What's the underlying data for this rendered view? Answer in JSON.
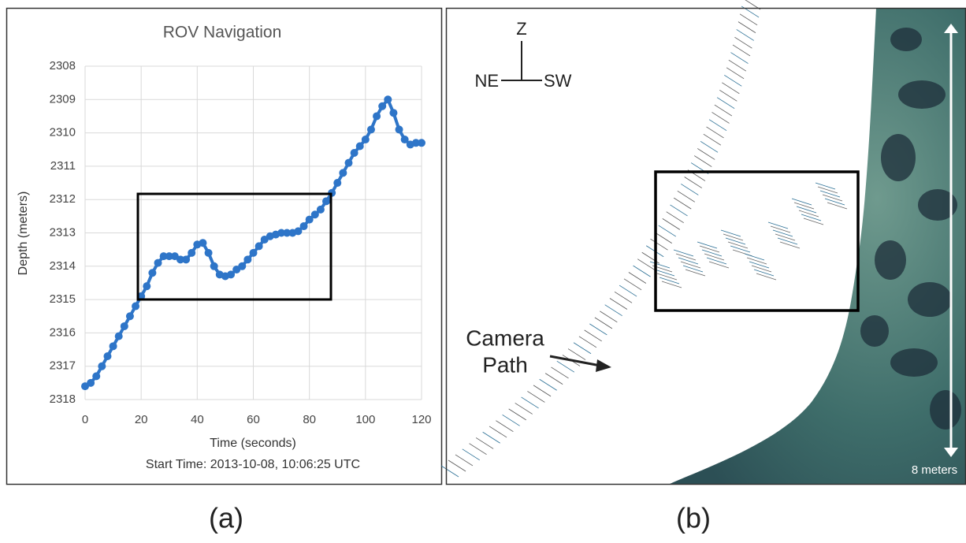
{
  "chart_data": {
    "type": "line",
    "title": "ROV Navigation",
    "x_label": "Time (seconds)",
    "y_label": "Depth (meters)",
    "note": "Start Time: 2013-10-08, 10:06:25 UTC",
    "x": [
      0,
      2,
      4,
      6,
      8,
      10,
      12,
      14,
      16,
      18,
      20,
      22,
      24,
      26,
      28,
      30,
      32,
      34,
      36,
      38,
      40,
      42,
      44,
      46,
      48,
      50,
      52,
      54,
      56,
      58,
      60,
      62,
      64,
      66,
      68,
      70,
      72,
      74,
      76,
      78,
      80,
      82,
      84,
      86,
      88,
      90,
      92,
      94,
      96,
      98,
      100,
      102,
      104,
      106,
      108,
      110,
      112,
      114,
      116,
      118,
      120
    ],
    "values": [
      2317.6,
      2317.5,
      2317.3,
      2317.0,
      2316.7,
      2316.4,
      2316.1,
      2315.8,
      2315.5,
      2315.2,
      2314.9,
      2314.6,
      2314.2,
      2313.9,
      2313.7,
      2313.7,
      2313.7,
      2313.8,
      2313.8,
      2313.6,
      2313.35,
      2313.3,
      2313.6,
      2314.0,
      2314.25,
      2314.3,
      2314.25,
      2314.1,
      2314.0,
      2313.8,
      2313.6,
      2313.4,
      2313.2,
      2313.1,
      2313.05,
      2313.0,
      2313.0,
      2313.0,
      2312.95,
      2312.8,
      2312.6,
      2312.45,
      2312.3,
      2312.05,
      2311.8,
      2311.5,
      2311.2,
      2310.9,
      2310.6,
      2310.4,
      2310.2,
      2309.9,
      2309.5,
      2309.2,
      2309.0,
      2309.4,
      2309.9,
      2310.2,
      2310.35,
      2310.3,
      2310.3
    ],
    "color": "#2e75c8",
    "markers": true,
    "xlim": [
      0,
      120
    ],
    "xticks": [
      0,
      20,
      40,
      60,
      80,
      100,
      120
    ],
    "ylim": [
      2308,
      2318
    ],
    "yticks": [
      2308,
      2309,
      2310,
      2311,
      2312,
      2313,
      2314,
      2315,
      2316,
      2317,
      2318
    ],
    "y_reversed": true,
    "grid": true
  },
  "panel_labels": [
    "(a)",
    "(b)"
  ],
  "panel_b": {
    "compass": {
      "up": "Z",
      "left": "NE",
      "right": "SW"
    },
    "annotation": [
      "Camera",
      "Path"
    ],
    "scale_label": "8 meters"
  }
}
